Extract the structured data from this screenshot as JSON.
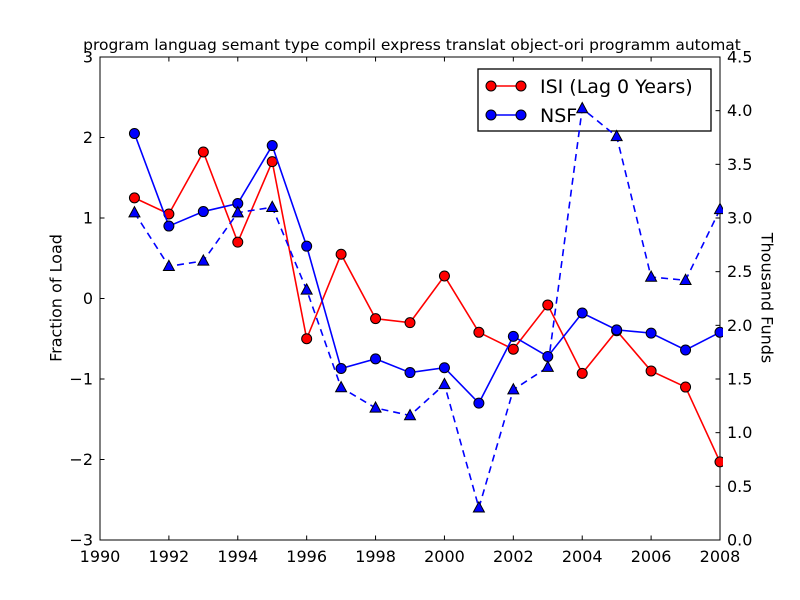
{
  "figure": {
    "background": "#ffffff",
    "frame_color": "#000000"
  },
  "chart_data": {
    "type": "line",
    "title": "program languag semant type compil express translat object-ori programm automat",
    "xlabel": "",
    "grid": false,
    "x": [
      1991,
      1992,
      1993,
      1994,
      1995,
      1996,
      1997,
      1998,
      1999,
      2000,
      2001,
      2002,
      2003,
      2004,
      2005,
      2006,
      2007,
      2008
    ],
    "xlim": [
      1990,
      2008
    ],
    "xticks": [
      {
        "value": 1990,
        "label": "1990"
      },
      {
        "value": 1992,
        "label": "1992"
      },
      {
        "value": 1994,
        "label": "1994"
      },
      {
        "value": 1996,
        "label": "1996"
      },
      {
        "value": 1998,
        "label": "1998"
      },
      {
        "value": 2000,
        "label": "2000"
      },
      {
        "value": 2002,
        "label": "2002"
      },
      {
        "value": 2004,
        "label": "2004"
      },
      {
        "value": 2006,
        "label": "2006"
      },
      {
        "value": 2008,
        "label": "2008"
      }
    ],
    "axes": {
      "left": {
        "label": "Fraction of Load",
        "lim": [
          -3,
          3
        ],
        "ticks": [
          {
            "value": 3,
            "label": "3"
          },
          {
            "value": 2,
            "label": "2"
          },
          {
            "value": 1,
            "label": "1"
          },
          {
            "value": 0,
            "label": "0"
          },
          {
            "value": -1,
            "label": "−1"
          },
          {
            "value": -2,
            "label": "−2"
          },
          {
            "value": -3,
            "label": "−3"
          }
        ]
      },
      "right": {
        "label": "Thousand Funds",
        "lim": [
          0,
          4.5
        ],
        "ticks": [
          {
            "value": 4.5,
            "label": "4.5"
          },
          {
            "value": 4.0,
            "label": "4.0"
          },
          {
            "value": 3.5,
            "label": "3.5"
          },
          {
            "value": 3.0,
            "label": "3.0"
          },
          {
            "value": 2.5,
            "label": "2.5"
          },
          {
            "value": 2.0,
            "label": "2.0"
          },
          {
            "value": 1.5,
            "label": "1.5"
          },
          {
            "value": 1.0,
            "label": "1.0"
          },
          {
            "value": 0.5,
            "label": "0.5"
          },
          {
            "value": 0.0,
            "label": "0.0"
          }
        ]
      }
    },
    "legend": {
      "position": "upper right",
      "items": [
        {
          "label": "ISI (Lag 0 Years)",
          "color": "#ff0000",
          "marker": "circle",
          "line": "solid"
        },
        {
          "label": "NSF",
          "color": "#0000ff",
          "marker": "circle",
          "line": "solid"
        }
      ]
    },
    "series": [
      {
        "name": "ISI (Lag 0 Years)",
        "axis": "left",
        "color": "#ff0000",
        "line": "solid",
        "marker": "circle",
        "in_legend": true,
        "values": [
          1.25,
          1.05,
          1.82,
          0.7,
          1.7,
          -0.5,
          0.55,
          -0.25,
          -0.3,
          0.28,
          -0.42,
          -0.63,
          -0.08,
          -0.93,
          -0.4,
          -0.9,
          -1.1,
          -2.03
        ]
      },
      {
        "name": "NSF",
        "axis": "left",
        "color": "#0000ff",
        "line": "solid",
        "marker": "circle",
        "in_legend": true,
        "values": [
          2.05,
          0.9,
          1.08,
          1.18,
          1.9,
          0.65,
          -0.87,
          -0.75,
          -0.92,
          -0.86,
          -1.3,
          -0.47,
          -0.72,
          -0.18,
          -0.39,
          -0.43,
          -0.64,
          -0.42
        ]
      },
      {
        "name": "",
        "axis": "right",
        "color": "#0000ff",
        "line": "dashed",
        "marker": "triangle",
        "in_legend": false,
        "values": [
          3.05,
          2.55,
          2.6,
          3.05,
          3.1,
          2.33,
          1.42,
          1.23,
          1.16,
          1.45,
          0.3,
          1.4,
          1.61,
          4.02,
          3.76,
          2.45,
          2.42,
          3.08
        ]
      }
    ]
  }
}
